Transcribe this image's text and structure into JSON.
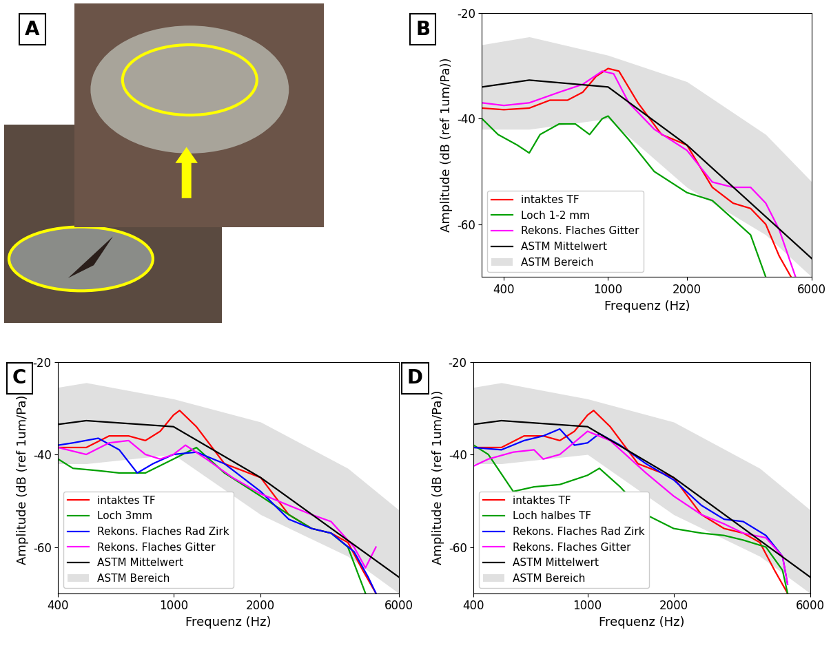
{
  "image_panel": {
    "label": "A"
  },
  "chart_data": [
    {
      "type": "line",
      "annotations": [
        "B"
      ],
      "x_label": "Frequenz (Hz)",
      "y_label": "Amplitude (dB (ref 1um/Pa))",
      "log": "x",
      "legend": "lower left",
      "xlim": [
        330,
        6000
      ],
      "xticks": [
        400,
        1000,
        2000,
        6000
      ],
      "ylim": [
        -70,
        -20
      ],
      "yticks": [
        -20,
        -40,
        -60
      ],
      "series": [
        {
          "name": "intaktes TF",
          "color": "#ff0000",
          "x": [
            330,
            400,
            500,
            600,
            700,
            800,
            900,
            1000,
            1100,
            1300,
            1600,
            2000,
            2500,
            3000,
            3500,
            4000,
            4500,
            5000
          ],
          "values": [
            -38,
            -38.3,
            -38,
            -36.5,
            -36.5,
            -35,
            -32,
            -30.5,
            -31,
            -37,
            -43,
            -45,
            -53,
            -56,
            -57,
            -60,
            -66,
            -70
          ]
        },
        {
          "name": "Loch 1-2 mm",
          "color": "#00a000",
          "x": [
            330,
            380,
            450,
            500,
            550,
            650,
            750,
            850,
            950,
            1000,
            1200,
            1500,
            2000,
            2500,
            3000,
            3500,
            4000
          ],
          "values": [
            -40,
            -43,
            -45,
            -46.5,
            -43,
            -41,
            -41,
            -43,
            -40,
            -39.5,
            -44,
            -50,
            -54,
            -55.5,
            -59,
            -62,
            -70
          ]
        },
        {
          "name": "Rekons. Flaches Gitter",
          "color": "#ff00ff",
          "x": [
            330,
            400,
            500,
            650,
            800,
            950,
            1050,
            1200,
            1500,
            2000,
            2500,
            3000,
            3500,
            4000,
            4500,
            5200
          ],
          "values": [
            -37,
            -37.5,
            -37,
            -35,
            -33.5,
            -31,
            -31.5,
            -37,
            -42,
            -46,
            -52,
            -53,
            -53,
            -56,
            -61,
            -70
          ]
        },
        {
          "name": "ASTM Mittelwert",
          "color": "#000000",
          "x": [
            330,
            500,
            1000,
            2000,
            6000
          ],
          "values": [
            -34,
            -32.7,
            -34,
            -45,
            -66.5
          ]
        },
        {
          "name": "ASTM Bereich",
          "type": "area",
          "color": "#e0e0e0",
          "x": [
            330,
            500,
            1000,
            2000,
            4000,
            6000
          ],
          "lower": [
            -42,
            -42,
            -40,
            -53,
            -62,
            -70
          ],
          "upper": [
            -26,
            -24.5,
            -28,
            -33,
            -43,
            -52
          ]
        }
      ]
    },
    {
      "type": "line",
      "annotations": [
        "C"
      ],
      "x_label": "Frequenz (Hz)",
      "y_label": "Amplitude (dB (ref 1um/Pa))",
      "log": "x",
      "legend": "lower left",
      "xlim": [
        400,
        6000
      ],
      "xticks": [
        400,
        1000,
        2000,
        6000
      ],
      "ylim": [
        -70,
        -20
      ],
      "yticks": [
        -20,
        -40,
        -60
      ],
      "series": [
        {
          "name": "intaktes TF",
          "color": "#ff0000",
          "x": [
            400,
            500,
            600,
            700,
            800,
            900,
            1000,
            1050,
            1200,
            1500,
            2000,
            2500,
            3000,
            3500,
            4000,
            4500,
            5000
          ],
          "values": [
            -38.5,
            -38.5,
            -36,
            -36,
            -37,
            -35,
            -31.5,
            -30.5,
            -34,
            -42,
            -45,
            -53,
            -56,
            -57,
            -59,
            -65,
            -70
          ]
        },
        {
          "name": "Loch 3mm",
          "color": "#00a000",
          "x": [
            400,
            450,
            550,
            650,
            800,
            1000,
            1200,
            1500,
            2000,
            2500,
            3000,
            3500,
            4000,
            4600
          ],
          "values": [
            -41,
            -43,
            -43.5,
            -44,
            -44,
            -41,
            -38.5,
            -44,
            -49,
            -53,
            -56,
            -57,
            -60,
            -70
          ]
        },
        {
          "name": "Rekons. Flaches Rad Zirk",
          "color": "#0000ff",
          "x": [
            400,
            450,
            550,
            650,
            750,
            850,
            1000,
            1200,
            1500,
            2000,
            2500,
            3000,
            3500,
            4200,
            4700,
            5000
          ],
          "values": [
            -38,
            -37.5,
            -36.5,
            -39,
            -44,
            -42,
            -40,
            -39.5,
            -42,
            -48,
            -54,
            -56,
            -57,
            -61,
            -66.5,
            -70
          ]
        },
        {
          "name": "Rekons. Flaches Gitter",
          "color": "#ff00ff",
          "x": [
            400,
            500,
            600,
            700,
            800,
            900,
            1000,
            1100,
            1300,
            1600,
            2000,
            2500,
            3000,
            3500,
            4200,
            4600,
            5000
          ],
          "values": [
            -38.5,
            -40,
            -37.5,
            -37,
            -40,
            -41,
            -40,
            -38,
            -41,
            -45,
            -48.5,
            -51,
            -53,
            -54.5,
            -60,
            -64.5,
            -60
          ]
        },
        {
          "name": "ASTM Mittelwert",
          "color": "#000000",
          "x": [
            400,
            500,
            1000,
            2000,
            6000
          ],
          "values": [
            -33.5,
            -32.7,
            -34,
            -45,
            -66.5
          ]
        },
        {
          "name": "ASTM Bereich",
          "type": "area",
          "color": "#e0e0e0",
          "x": [
            400,
            500,
            1000,
            2000,
            4000,
            6000
          ],
          "lower": [
            -42,
            -42,
            -40,
            -53,
            -62,
            -70
          ],
          "upper": [
            -25.5,
            -24.5,
            -28,
            -33,
            -43,
            -52
          ]
        }
      ]
    },
    {
      "type": "line",
      "annotations": [
        "D"
      ],
      "x_label": "Frequenz (Hz)",
      "y_label": "Amplitude (dB (ref 1um/Pa))",
      "log": "x",
      "legend": "lower left",
      "xlim": [
        400,
        6000
      ],
      "xticks": [
        400,
        1000,
        2000,
        6000
      ],
      "ylim": [
        -70,
        -20
      ],
      "yticks": [
        -20,
        -40,
        -60
      ],
      "series": [
        {
          "name": "intaktes TF",
          "color": "#ff0000",
          "x": [
            400,
            500,
            600,
            700,
            800,
            900,
            1000,
            1050,
            1200,
            1500,
            2000,
            2500,
            3000,
            3500,
            4000,
            4500,
            5000
          ],
          "values": [
            -38.5,
            -38.5,
            -36,
            -36,
            -37,
            -35,
            -31.5,
            -30.5,
            -34,
            -42,
            -45,
            -53,
            -56,
            -57,
            -59,
            -65,
            -70
          ]
        },
        {
          "name": "Loch halbes TF",
          "color": "#00a000",
          "x": [
            400,
            450,
            550,
            650,
            800,
            1000,
            1100,
            1300,
            1600,
            2000,
            2500,
            3000,
            3500,
            4200,
            4800,
            5000
          ],
          "values": [
            -38,
            -40,
            -48,
            -47,
            -46.5,
            -44.5,
            -43,
            -47,
            -53,
            -56,
            -57,
            -57.5,
            -58.5,
            -60,
            -65,
            -70
          ]
        },
        {
          "name": "Rekons. Flaches Rad Zirk",
          "color": "#0000ff",
          "x": [
            400,
            500,
            600,
            700,
            800,
            900,
            1000,
            1100,
            1300,
            1600,
            2000,
            2500,
            3000,
            3500,
            4200,
            4800,
            5000
          ],
          "values": [
            -38.5,
            -39,
            -37,
            -36,
            -34.5,
            -38,
            -37.5,
            -35.5,
            -38,
            -42,
            -45.5,
            -51,
            -54,
            -54.5,
            -57.5,
            -62,
            -68
          ]
        },
        {
          "name": "Rekons. Flaches Gitter",
          "color": "#ff00ff",
          "x": [
            400,
            450,
            550,
            650,
            700,
            800,
            1000,
            1200,
            1600,
            2000,
            2500,
            3000,
            3500,
            4200,
            4800,
            5000
          ],
          "values": [
            -42.5,
            -41,
            -39.5,
            -39,
            -41,
            -40,
            -35,
            -37,
            -44,
            -49,
            -53,
            -55,
            -57,
            -58,
            -62,
            -68
          ]
        },
        {
          "name": "ASTM Mittelwert",
          "color": "#000000",
          "x": [
            400,
            500,
            1000,
            2000,
            6000
          ],
          "values": [
            -33.5,
            -32.7,
            -34,
            -45,
            -66.5
          ]
        },
        {
          "name": "ASTM Bereich",
          "type": "area",
          "color": "#e0e0e0",
          "x": [
            400,
            500,
            1000,
            2000,
            4000,
            6000
          ],
          "lower": [
            -42,
            -42,
            -40,
            -53,
            -62,
            -70
          ],
          "upper": [
            -25.5,
            -24.5,
            -28,
            -33,
            -43,
            -52
          ]
        }
      ]
    }
  ]
}
